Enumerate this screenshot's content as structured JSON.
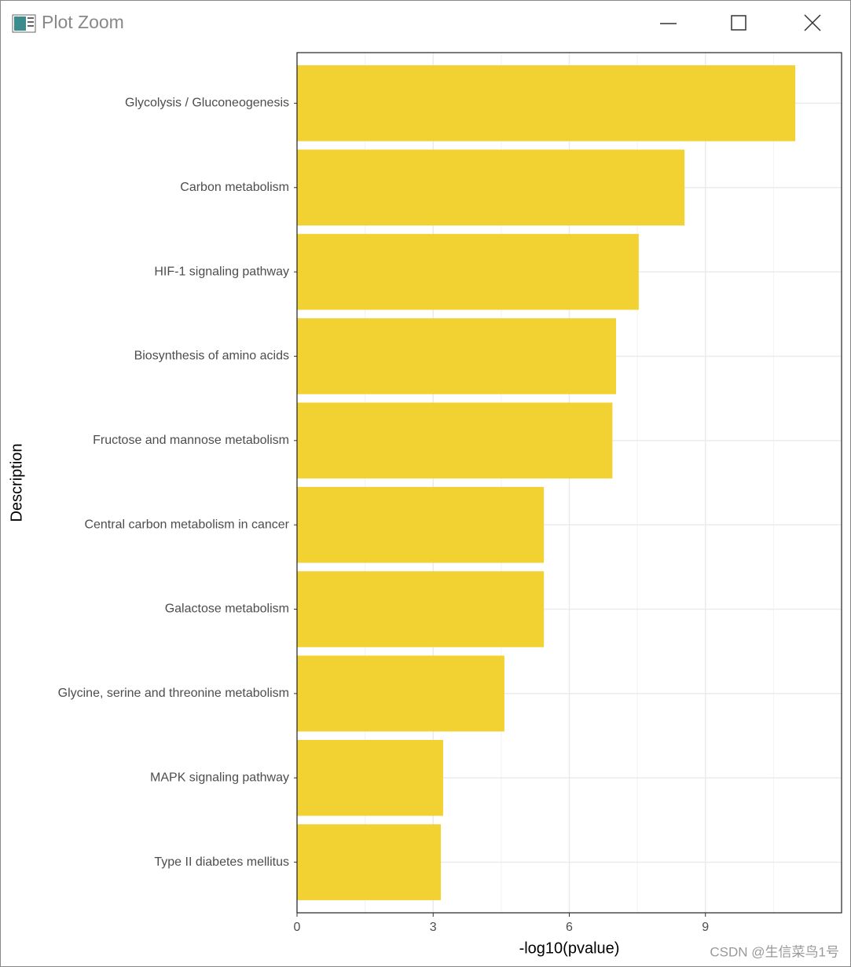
{
  "window": {
    "title": "Plot Zoom"
  },
  "chart_data": {
    "type": "bar",
    "orientation": "horizontal",
    "x_label": "-log10(pvalue)",
    "y_label": "Description",
    "categories": [
      "Glycolysis / Gluconeogenesis",
      "Carbon metabolism",
      "HIF-1 signaling pathway",
      "Biosynthesis of amino acids",
      "Fructose and mannose metabolism",
      "Central carbon metabolism in cancer",
      "Galactose metabolism",
      "Glycine, serine and threonine metabolism",
      "MAPK signaling pathway",
      "Type II diabetes mellitus"
    ],
    "values": [
      10.98,
      8.54,
      7.53,
      7.03,
      6.95,
      5.44,
      5.44,
      4.57,
      3.22,
      3.17
    ],
    "color": "#f2d232",
    "xlim": [
      0,
      12
    ],
    "xticks": [
      0,
      3,
      6,
      9
    ],
    "grid": true
  },
  "watermark": "CSDN @生信菜鸟1号"
}
